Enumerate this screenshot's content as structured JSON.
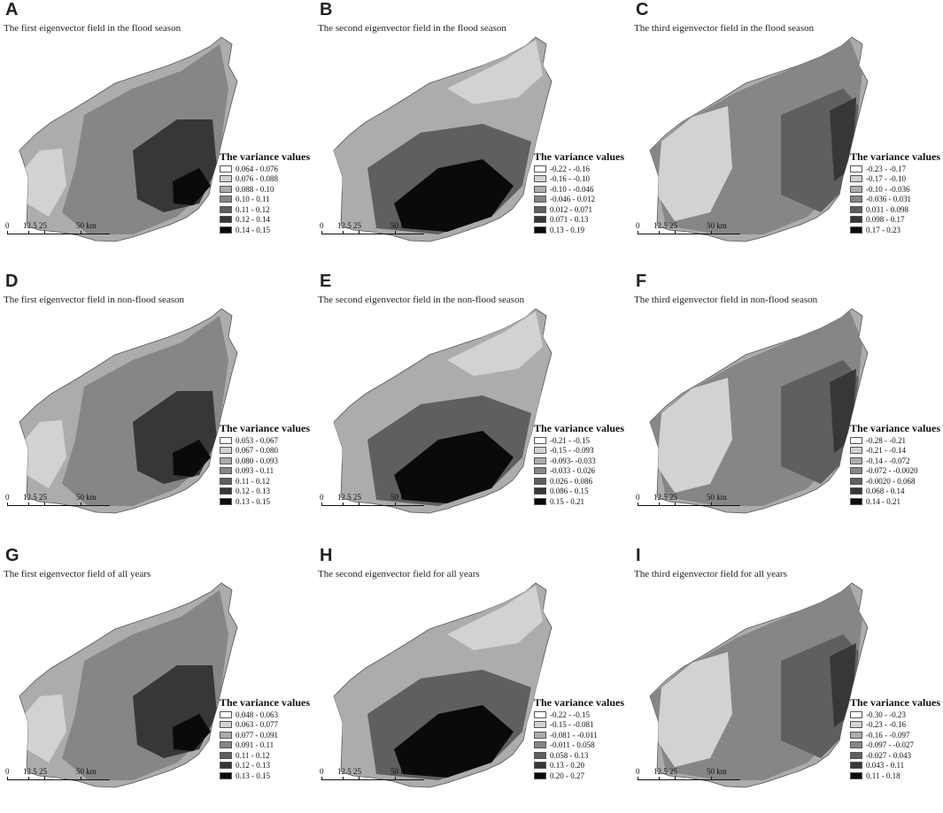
{
  "legend_title": "The variance values",
  "scale": {
    "t0": "0",
    "t1": "12.5",
    "t2": "25",
    "t3": "50 km"
  },
  "swatches": [
    "#ffffff",
    "#d2d2d2",
    "#acacac",
    "#868686",
    "#5f5f5f",
    "#373737",
    "#0a0a0a"
  ],
  "panels": [
    {
      "letter": "A",
      "title": "The first eigenvector field in the flood season",
      "legend": [
        "0.064 - 0.076",
        "0.076 - 0.088",
        "0.088 - 0.10",
        "0.10 - 0.11",
        "0.11 - 0.12",
        "0.12 - 0.14",
        "0.14 - 0.15"
      ]
    },
    {
      "letter": "B",
      "title": "The second eigenvector field in the flood season",
      "legend": [
        "-0.22 - -0.16",
        "-0.16 - -0.10",
        "-0.10 - -0.046",
        "-0.046 - 0.012",
        "0.012 - 0.071",
        "0.071 - 0.13",
        "0.13 - 0.19"
      ]
    },
    {
      "letter": "C",
      "title": "The third eigenvector field in the flood season",
      "legend": [
        "-0.23 - -0.17",
        "-0.17 - -0.10",
        "-0.10 - -0.036",
        "-0.036 - 0.031",
        "0.031 - 0.098",
        "0.098 - 0.17",
        "0.17 - 0.23"
      ]
    },
    {
      "letter": "D",
      "title": "The first eigenvector field in non-flood season",
      "legend": [
        "0.053 - 0.067",
        "0.067 - 0.080",
        "0.080 - 0.093",
        "0.093 - 0.11",
        "0.11 - 0.12",
        "0.12 - 0.13",
        "0.13 - 0.15"
      ]
    },
    {
      "letter": "E",
      "title": "The second eigenvector field in the non-flood season",
      "legend": [
        "-0.21 - -0.15",
        "-0.15 - -0.093",
        "-0.093- -0.033",
        "-0.033 - 0.026",
        "0.026 - 0.086",
        "0.086 - 0.15",
        "0.15 - 0.21"
      ]
    },
    {
      "letter": "F",
      "title": "The third eigenvector field in non-flood season",
      "legend": [
        "-0.28 - -0.21",
        "-0.21 - -0.14",
        "-0.14 - -0.072",
        "-0.072 - -0.0020",
        "-0.0020 - 0.068",
        "0.068 - 0.14",
        "0.14 - 0.21"
      ]
    },
    {
      "letter": "G",
      "title": "The first eigenvector field of all years",
      "legend": [
        "0.048 - 0.063",
        "0.063 - 0.077",
        "0.077 - 0.091",
        "0.091 - 0.11",
        "0.11 - 0.12",
        "0.12 - 0.13",
        "0.13 - 0.15"
      ]
    },
    {
      "letter": "H",
      "title": "The second eigenvector field for all years",
      "legend": [
        "-0.22 - -0.15",
        "-0.15 - -0.081",
        "-0.081 - -0.011",
        "-0.011 - 0.058",
        "0.058 - 0.13",
        "0.13 - 0.20",
        "0.20 - 0.27"
      ]
    },
    {
      "letter": "I",
      "title": "The third eigenvector field for all years",
      "legend": [
        "-0.30 - -0.23",
        "-0.23 - -0.16",
        "-0.16 - -0.097",
        "-0.097 - -0.027",
        "-0.027 - 0.043",
        "0.043 - 0.11",
        "0.11 - 0.18"
      ]
    }
  ]
}
